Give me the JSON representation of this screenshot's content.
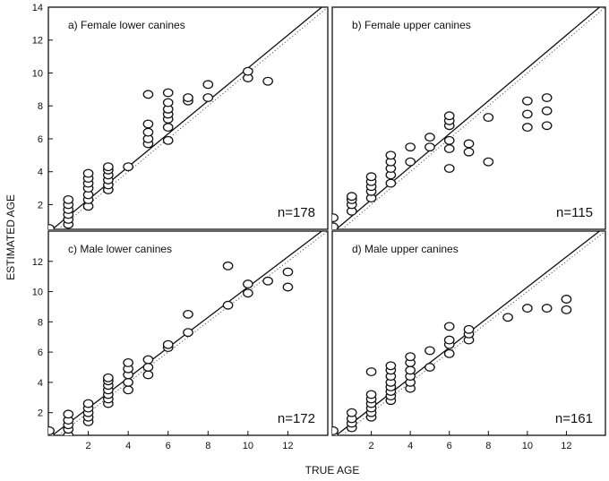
{
  "xlabel": "TRUE AGE",
  "ylabel": "ESTIMATED AGE",
  "chart_data": [
    {
      "type": "scatter",
      "title": "a) Female lower canines",
      "n_label": "n=178",
      "xlim": [
        0,
        14
      ],
      "ylim": [
        0.5,
        14
      ],
      "xticks": [],
      "xtick_labels": [],
      "yticks": [
        2,
        4,
        6,
        8,
        10,
        12,
        14
      ],
      "ytick_labels": [
        "2",
        "4",
        "6",
        "8",
        "10",
        "12",
        "14"
      ],
      "regression": [
        [
          0,
          0.3
        ],
        [
          14,
          14.3
        ]
      ],
      "reference": [
        [
          0,
          0
        ],
        [
          14,
          14
        ]
      ],
      "points": [
        [
          0.05,
          0.55
        ],
        [
          1,
          0.8
        ],
        [
          1,
          1.1
        ],
        [
          1,
          1.4
        ],
        [
          1,
          1.7
        ],
        [
          1,
          2.0
        ],
        [
          1,
          2.3
        ],
        [
          2,
          1.9
        ],
        [
          2,
          2.3
        ],
        [
          2,
          2.6
        ],
        [
          2,
          3.0
        ],
        [
          2,
          3.3
        ],
        [
          2,
          3.6
        ],
        [
          2,
          3.9
        ],
        [
          3,
          2.9
        ],
        [
          3,
          3.2
        ],
        [
          3,
          3.5
        ],
        [
          3,
          3.8
        ],
        [
          3,
          4.1
        ],
        [
          3,
          4.3
        ],
        [
          4,
          4.3
        ],
        [
          5,
          5.7
        ],
        [
          5,
          6.0
        ],
        [
          5,
          6.4
        ],
        [
          5,
          6.9
        ],
        [
          5,
          8.7
        ],
        [
          6,
          5.9
        ],
        [
          6,
          6.7
        ],
        [
          6,
          7.2
        ],
        [
          6,
          7.5
        ],
        [
          6,
          7.8
        ],
        [
          6,
          8.2
        ],
        [
          6,
          8.8
        ],
        [
          7,
          8.3
        ],
        [
          7,
          8.5
        ],
        [
          8,
          8.5
        ],
        [
          8,
          9.3
        ],
        [
          10,
          9.7
        ],
        [
          10,
          10.1
        ],
        [
          11,
          9.5
        ]
      ]
    },
    {
      "type": "scatter",
      "title": "b) Female upper canines",
      "n_label": "n=115",
      "xlim": [
        0,
        14
      ],
      "ylim": [
        0.5,
        14
      ],
      "xticks": [],
      "xtick_labels": [],
      "yticks": [],
      "ytick_labels": [],
      "regression": [
        [
          0,
          0.3
        ],
        [
          14,
          14.3
        ]
      ],
      "reference": [
        [
          0,
          0
        ],
        [
          14,
          14
        ]
      ],
      "points": [
        [
          0.05,
          0.65
        ],
        [
          0.05,
          1.2
        ],
        [
          1,
          1.6
        ],
        [
          1,
          2.0
        ],
        [
          1,
          2.3
        ],
        [
          1,
          2.5
        ],
        [
          2,
          2.4
        ],
        [
          2,
          2.8
        ],
        [
          2,
          3.1
        ],
        [
          2,
          3.4
        ],
        [
          2,
          3.7
        ],
        [
          3,
          3.3
        ],
        [
          3,
          3.8
        ],
        [
          3,
          4.2
        ],
        [
          3,
          4.6
        ],
        [
          3,
          5.0
        ],
        [
          4,
          4.6
        ],
        [
          4,
          5.5
        ],
        [
          5,
          5.5
        ],
        [
          5,
          6.1
        ],
        [
          6,
          4.2
        ],
        [
          6,
          5.4
        ],
        [
          6,
          5.9
        ],
        [
          6,
          6.8
        ],
        [
          6,
          7.1
        ],
        [
          6,
          7.4
        ],
        [
          7,
          5.2
        ],
        [
          7,
          5.7
        ],
        [
          8,
          4.6
        ],
        [
          8,
          7.3
        ],
        [
          10,
          6.7
        ],
        [
          10,
          7.5
        ],
        [
          10,
          8.3
        ],
        [
          11,
          6.8
        ],
        [
          11,
          7.7
        ],
        [
          11,
          8.5
        ]
      ]
    },
    {
      "type": "scatter",
      "title": "c) Male lower canines",
      "n_label": "n=172",
      "xlim": [
        0,
        14
      ],
      "ylim": [
        0.5,
        14
      ],
      "xticks": [
        2,
        4,
        6,
        8,
        10,
        12
      ],
      "xtick_labels": [
        "2",
        "4",
        "6",
        "8",
        "10",
        "12"
      ],
      "yticks": [
        2,
        4,
        6,
        8,
        10,
        12
      ],
      "ytick_labels": [
        "2",
        "4",
        "6",
        "8",
        "10",
        "12"
      ],
      "regression": [
        [
          0,
          0.3
        ],
        [
          14,
          14.3
        ]
      ],
      "reference": [
        [
          0,
          0
        ],
        [
          14,
          14
        ]
      ],
      "points": [
        [
          0.05,
          0.5
        ],
        [
          0.05,
          0.8
        ],
        [
          1,
          0.5
        ],
        [
          1,
          0.9
        ],
        [
          1,
          1.2
        ],
        [
          1,
          1.5
        ],
        [
          1,
          1.9
        ],
        [
          2,
          1.4
        ],
        [
          2,
          1.7
        ],
        [
          2,
          2.0
        ],
        [
          2,
          2.3
        ],
        [
          2,
          2.6
        ],
        [
          3,
          2.6
        ],
        [
          3,
          2.9
        ],
        [
          3,
          3.2
        ],
        [
          3,
          3.5
        ],
        [
          3,
          3.8
        ],
        [
          3,
          4.1
        ],
        [
          3,
          4.3
        ],
        [
          4,
          3.5
        ],
        [
          4,
          4.0
        ],
        [
          4,
          4.5
        ],
        [
          4,
          4.9
        ],
        [
          4,
          5.3
        ],
        [
          5,
          4.5
        ],
        [
          5,
          5.0
        ],
        [
          5,
          5.5
        ],
        [
          6,
          6.3
        ],
        [
          6,
          6.5
        ],
        [
          7,
          7.3
        ],
        [
          7,
          8.5
        ],
        [
          9,
          9.1
        ],
        [
          9,
          11.7
        ],
        [
          10,
          9.9
        ],
        [
          10,
          10.5
        ],
        [
          11,
          10.7
        ],
        [
          12,
          10.3
        ],
        [
          12,
          11.3
        ]
      ]
    },
    {
      "type": "scatter",
      "title": "d) Male upper canines",
      "n_label": "n=161",
      "xlim": [
        0,
        14
      ],
      "ylim": [
        0.5,
        14
      ],
      "xticks": [
        2,
        4,
        6,
        8,
        10,
        12
      ],
      "xtick_labels": [
        "2",
        "4",
        "6",
        "8",
        "10",
        "12"
      ],
      "yticks": [],
      "ytick_labels": [],
      "regression": [
        [
          0,
          0.3
        ],
        [
          14,
          14.3
        ]
      ],
      "reference": [
        [
          0,
          0
        ],
        [
          14,
          14
        ]
      ],
      "points": [
        [
          0.05,
          0.5
        ],
        [
          0.05,
          0.8
        ],
        [
          1,
          1.0
        ],
        [
          1,
          1.3
        ],
        [
          1,
          1.6
        ],
        [
          1,
          2.0
        ],
        [
          2,
          1.7
        ],
        [
          2,
          2.0
        ],
        [
          2,
          2.3
        ],
        [
          2,
          2.6
        ],
        [
          2,
          2.9
        ],
        [
          2,
          3.2
        ],
        [
          2,
          4.7
        ],
        [
          3,
          2.8
        ],
        [
          3,
          3.1
        ],
        [
          3,
          3.4
        ],
        [
          3,
          3.7
        ],
        [
          3,
          4.0
        ],
        [
          3,
          4.4
        ],
        [
          3,
          4.8
        ],
        [
          3,
          5.1
        ],
        [
          4,
          3.6
        ],
        [
          4,
          4.0
        ],
        [
          4,
          4.4
        ],
        [
          4,
          4.8
        ],
        [
          4,
          5.3
        ],
        [
          4,
          5.7
        ],
        [
          5,
          5.0
        ],
        [
          5,
          6.1
        ],
        [
          6,
          5.9
        ],
        [
          6,
          6.5
        ],
        [
          6,
          6.8
        ],
        [
          6,
          7.7
        ],
        [
          7,
          6.8
        ],
        [
          7,
          7.2
        ],
        [
          7,
          7.5
        ],
        [
          9,
          8.3
        ],
        [
          10,
          8.9
        ],
        [
          11,
          8.9
        ],
        [
          12,
          8.8
        ],
        [
          12,
          9.5
        ]
      ]
    }
  ]
}
